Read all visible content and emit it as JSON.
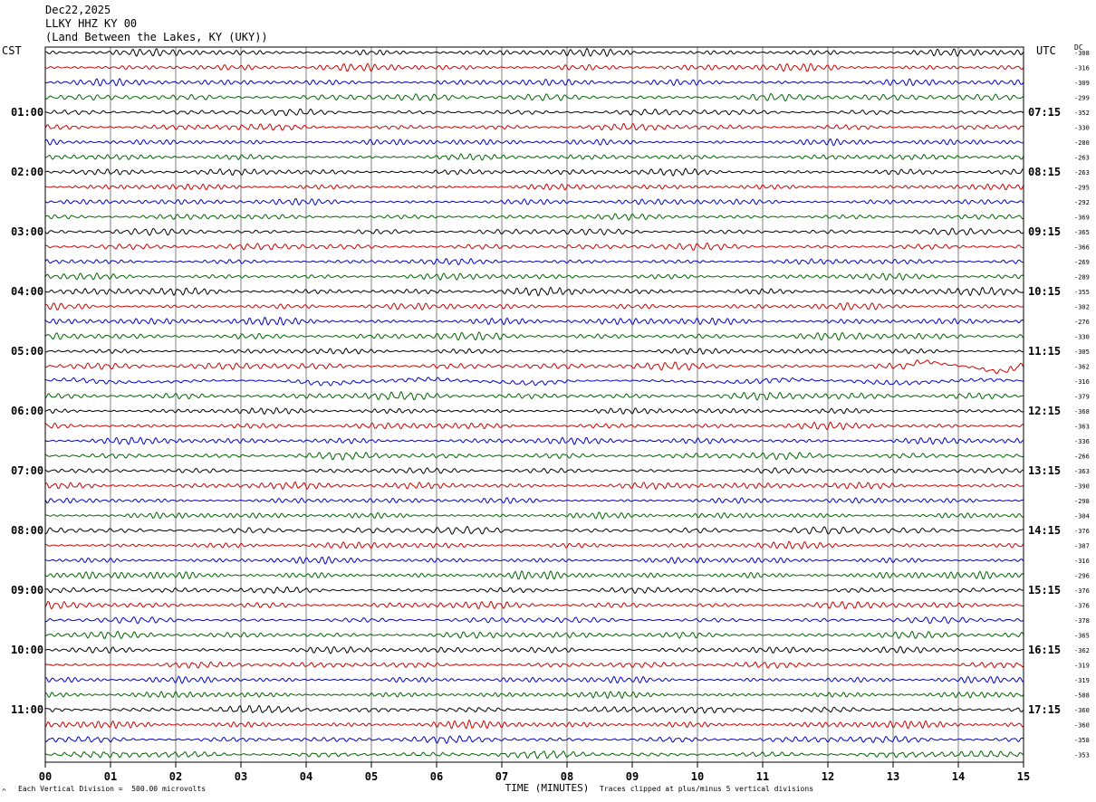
{
  "header": {
    "date": "Dec22,2025",
    "station": "LLKY HHZ KY 00",
    "location": "(Land Between the Lakes, KY (UKY))"
  },
  "left_axis_label": "CST",
  "right_axis_label": "UTC",
  "dc_label": "DC",
  "footer": {
    "scale_note": "Each Vertical Division =  500.00 microvolts",
    "xlabel": "TIME (MINUTES)",
    "clip_note": "Traces clipped at plus/minus 5 vertical divisions",
    "corner_mark": "^"
  },
  "colors": {
    "trace_cycle": [
      "#000000",
      "#d00000",
      "#0000c8",
      "#006400"
    ],
    "grid": "#808080"
  },
  "chart_data": {
    "type": "line",
    "xlabel": "TIME (MINUTES)",
    "xlim": [
      0,
      15
    ],
    "x_ticks": [
      "00",
      "01",
      "02",
      "03",
      "04",
      "05",
      "06",
      "07",
      "08",
      "09",
      "10",
      "11",
      "12",
      "13",
      "14",
      "15"
    ],
    "trace_minutes": 15,
    "trace_count": 48,
    "left_hour_labels": [
      "01:00",
      "02:00",
      "03:00",
      "04:00",
      "05:00",
      "06:00",
      "07:00",
      "08:00",
      "09:00",
      "10:00",
      "11:00"
    ],
    "right_hour_labels": [
      "07:15",
      "08:15",
      "09:15",
      "10:15",
      "11:15",
      "12:15",
      "13:15",
      "14:15",
      "15:15",
      "16:15",
      "17:15"
    ],
    "hour_label_every_traces": 4,
    "hour_label_start_trace": 4,
    "dc_offsets": [
      "-308",
      "-316",
      "-309",
      "-299",
      "-352",
      "-330",
      "-280",
      "-263",
      "-263",
      "-295",
      "-292",
      "-369",
      "-365",
      "-366",
      "-269",
      "-289",
      "-355",
      "-302",
      "-276",
      "-330",
      "-305",
      "-362",
      "-316",
      "-379",
      "-368",
      "-363",
      "-336",
      "-266",
      "-363",
      "-390",
      "-298",
      "-304",
      "-376",
      "-387",
      "-316",
      "-296",
      "-376",
      "-376",
      "-378",
      "-365",
      "-362",
      "-319",
      "-319",
      "-588",
      "-360",
      "-360",
      "-358",
      "-353"
    ],
    "grid": true,
    "scale_microvolts_per_division": 500.0,
    "clip_divisions": 5
  }
}
